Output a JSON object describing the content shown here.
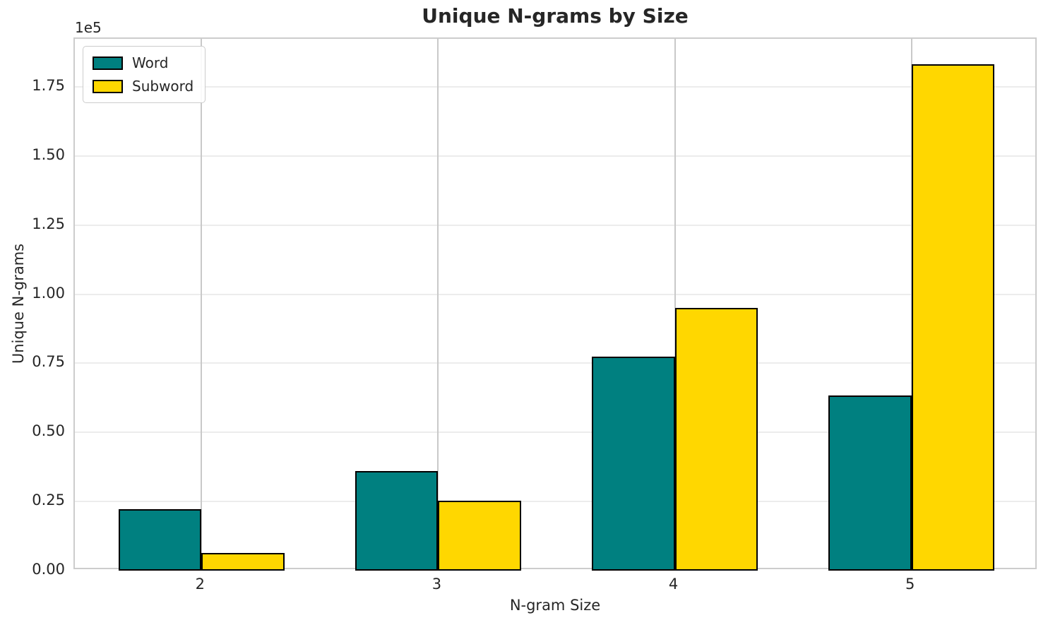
{
  "chart_data": {
    "type": "bar",
    "title": "Unique N-grams by Size",
    "xlabel": "N-gram Size",
    "ylabel": "Unique N-grams",
    "y_offset_text": "1e5",
    "categories": [
      2,
      3,
      4,
      5
    ],
    "series": [
      {
        "name": "Word",
        "color": "#008080",
        "values": [
          22300,
          36000,
          77300,
          63400
        ]
      },
      {
        "name": "Subword",
        "color": "#FFD700",
        "values": [
          6400,
          25300,
          95000,
          183300
        ]
      }
    ],
    "bar_width_units": 0.35,
    "xlim": [
      1.465,
      5.535
    ],
    "ylim": [
      0,
      192400
    ],
    "yticks": [
      0,
      25000,
      50000,
      75000,
      100000,
      125000,
      150000,
      175000
    ],
    "ytick_labels": [
      "0.00",
      "0.25",
      "0.50",
      "0.75",
      "1.00",
      "1.25",
      "1.50",
      "1.75"
    ],
    "grid": true,
    "legend_position": "upper left",
    "bar_edge_color": "#000000"
  }
}
